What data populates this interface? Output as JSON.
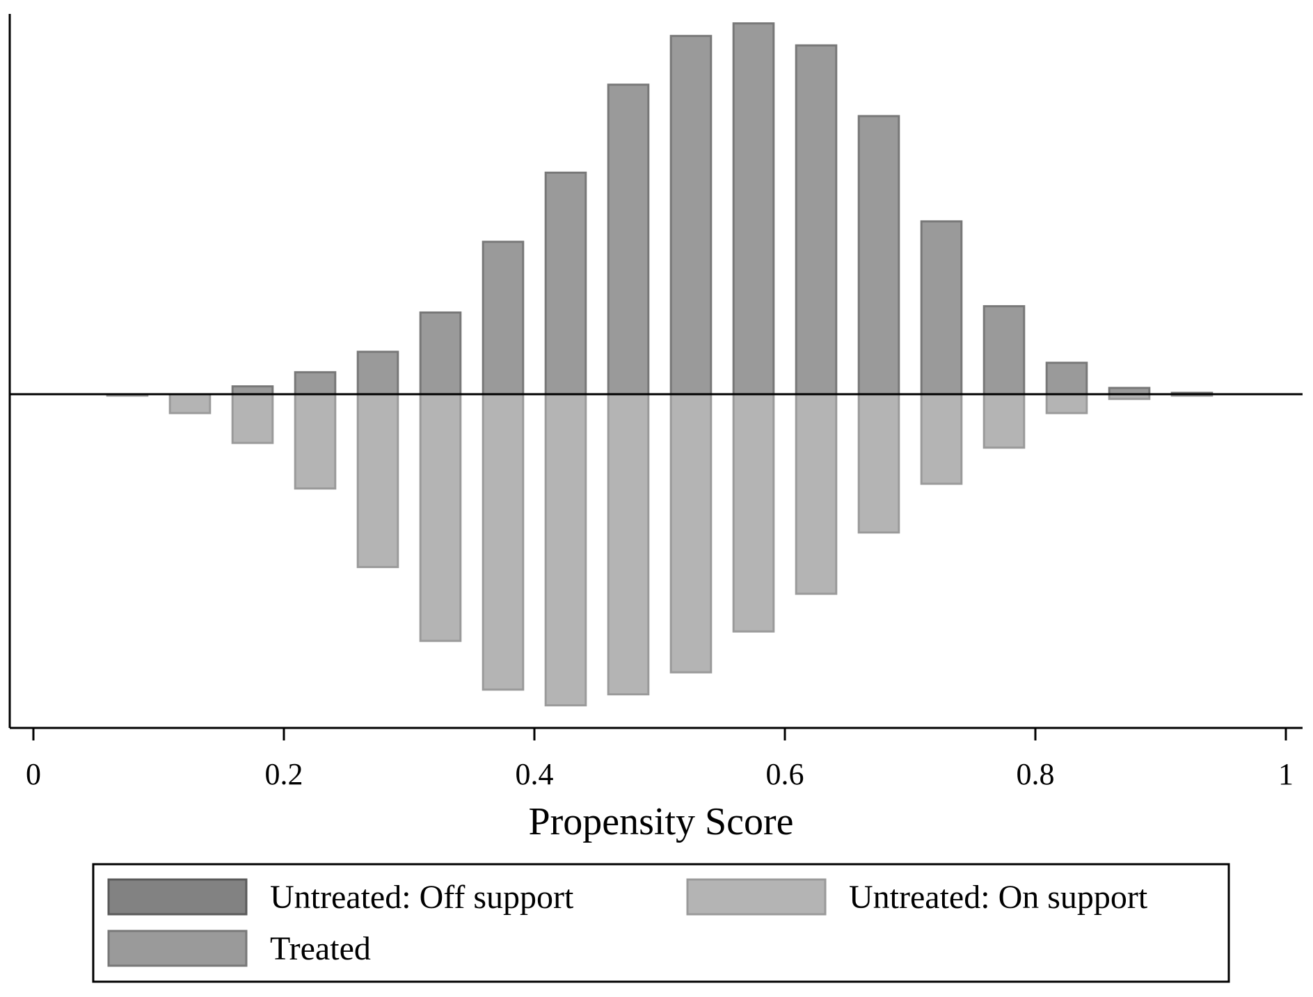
{
  "chart_data": {
    "type": "bar",
    "subtype": "mirrored-histogram",
    "xlabel": "Propensity Score",
    "ylabel": "",
    "xlim": [
      0,
      1
    ],
    "x_ticks": [
      0,
      0.2,
      0.4,
      0.6,
      0.8,
      1
    ],
    "x_tick_labels": [
      "0",
      "0.2",
      "0.4",
      "0.6",
      "0.8",
      "1"
    ],
    "bin_width": 0.04,
    "bin_centers": [
      0.075,
      0.125,
      0.175,
      0.225,
      0.275,
      0.325,
      0.375,
      0.425,
      0.475,
      0.525,
      0.575,
      0.625,
      0.675,
      0.725,
      0.775,
      0.825,
      0.875,
      0.925
    ],
    "ylim": [
      -1.0,
      1.15
    ],
    "y_ticks": [],
    "legend_position": "bottom",
    "series": [
      {
        "name": "Treated",
        "key": "treated",
        "direction": "up",
        "color": "#9a9a9a",
        "stroke": "#787878",
        "values": [
          0.0,
          0.0,
          0.025,
          0.07,
          0.135,
          0.26,
          0.485,
          0.705,
          0.985,
          1.14,
          1.18,
          1.11,
          0.885,
          0.55,
          0.28,
          0.1,
          0.02,
          0.003
        ]
      },
      {
        "name": "Untreated: On support",
        "key": "untreated_on",
        "direction": "down",
        "color": "#b4b4b4",
        "stroke": "#9a9a9a",
        "values": [
          0.004,
          0.06,
          0.155,
          0.3,
          0.55,
          0.785,
          0.94,
          0.99,
          0.955,
          0.885,
          0.755,
          0.635,
          0.44,
          0.285,
          0.17,
          0.06,
          0.015,
          0.003
        ]
      },
      {
        "name": "Untreated: Off support",
        "key": "untreated_off",
        "direction": "down",
        "color": "#828282",
        "stroke": "#5a5a5a",
        "values": [
          0,
          0,
          0,
          0,
          0,
          0,
          0,
          0,
          0,
          0,
          0,
          0,
          0,
          0,
          0,
          0,
          0,
          0
        ]
      }
    ],
    "legend": [
      {
        "label": "Untreated: Off support",
        "key": "untreated_off",
        "color": "#828282",
        "stroke": "#5a5a5a"
      },
      {
        "label": "Untreated: On support",
        "key": "untreated_on",
        "color": "#b4b4b4",
        "stroke": "#9a9a9a"
      },
      {
        "label": "Treated",
        "key": "treated",
        "color": "#9a9a9a",
        "stroke": "#787878"
      }
    ]
  }
}
